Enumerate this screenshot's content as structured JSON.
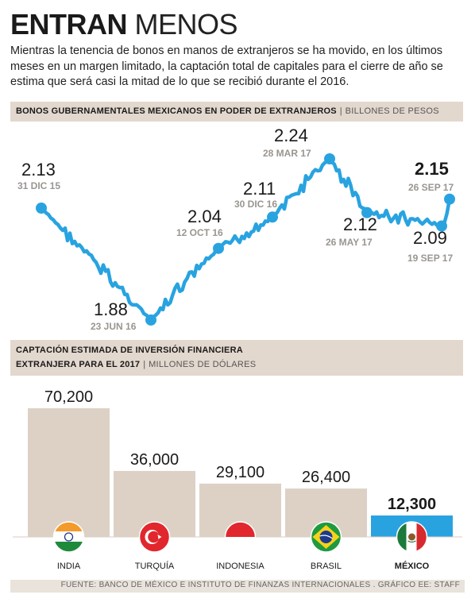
{
  "header": {
    "title_bold": "ENTRAN",
    "title_light": "MENOS",
    "subtitle": "Mientras la tenencia de bonos en manos de extranjeros se ha movido, en los últimos meses en un margen limitado, la captación total de capitales para el cierre de año se estima que será casi la mitad de lo que se recibió durante el 2016."
  },
  "chart_data": [
    {
      "type": "line",
      "title": "BONOS GUBERNAMENTALES MEXICANOS EN PODER DE EXTRANJEROS",
      "unit": "BILLONES DE PESOS",
      "color": "#29a3e0",
      "x": [
        "31 DIC 15",
        "23 JUN 16",
        "12 OCT 16",
        "30 DIC 16",
        "28 MAR 17",
        "26 MAY 17",
        "19 SEP 17",
        "26 SEP 17"
      ],
      "y": [
        2.13,
        1.88,
        2.04,
        2.11,
        2.24,
        2.12,
        2.09,
        2.15
      ],
      "annotations": [
        {
          "value": "2.13",
          "date": "31 DIC 15"
        },
        {
          "value": "1.88",
          "date": "23 JUN 16"
        },
        {
          "value": "2.04",
          "date": "12 OCT 16"
        },
        {
          "value": "2.11",
          "date": "30 DIC 16"
        },
        {
          "value": "2.24",
          "date": "28 MAR 17"
        },
        {
          "value": "2.12",
          "date": "26 MAY 17"
        },
        {
          "value": "2.09",
          "date": "19 SEP 17"
        },
        {
          "value": "2.15",
          "date": "26 SEP 17"
        }
      ]
    },
    {
      "type": "bar",
      "title": "CAPTACIÓN ESTIMADA DE INVERSIÓN FINANCIERA EXTRANJERA PARA EL 2017",
      "title_line1": "CAPTACIÓN ESTIMADA DE INVERSIÓN FINANCIERA",
      "title_line2": "EXTRANJERA PARA EL 2017",
      "unit": "MILLONES DE DÓLARES",
      "categories": [
        "INDIA",
        "TURQUÍA",
        "INDONESIA",
        "BRASIL",
        "MÉXICO"
      ],
      "values": [
        70200,
        36000,
        29100,
        26400,
        12300
      ],
      "value_labels": [
        "70,200",
        "36,000",
        "29,100",
        "26,400",
        "12,300"
      ],
      "flags": [
        "india-flag-icon",
        "turkey-flag-icon",
        "indonesia-flag-icon",
        "brazil-flag-icon",
        "mexico-flag-icon"
      ],
      "colors": {
        "default": "#ddd1c6",
        "highlight": "#29a3e0"
      },
      "highlight": "MÉXICO"
    }
  ],
  "footer": {
    "source": "FUENTE: BANCO DE MÉXICO E INSTITUTO DE FINANZAS INTERNACIONALES . GRÁFICO EE: STAFF"
  }
}
